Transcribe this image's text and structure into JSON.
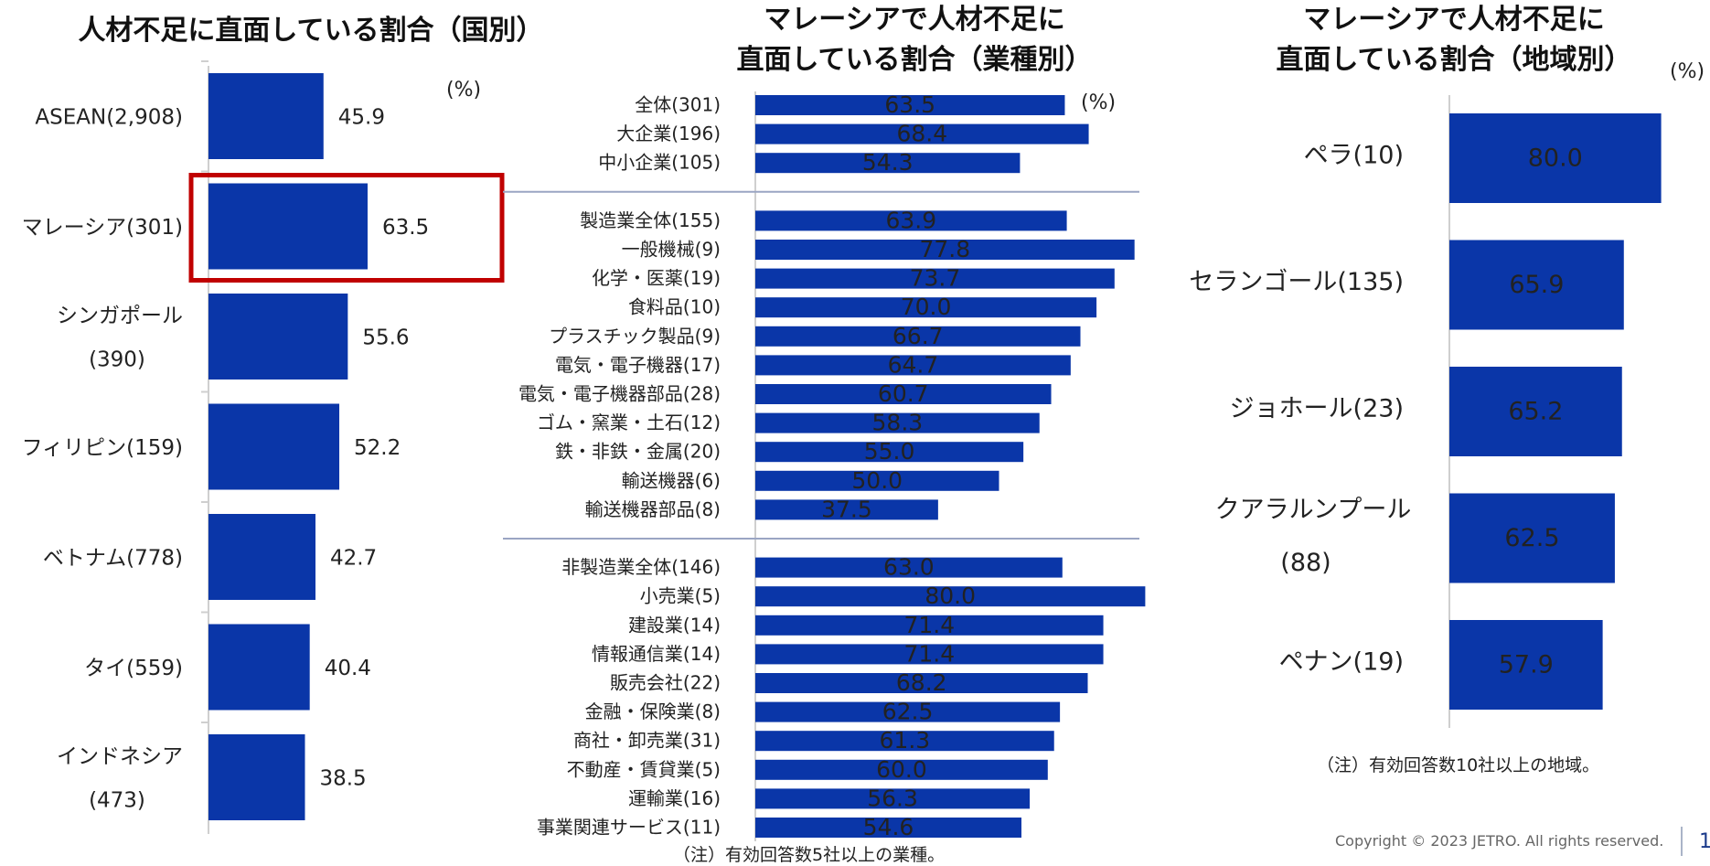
{
  "titles": {
    "country": "人材不足に直面している割合（国別）",
    "industry_line1": "マレーシアで人材不足に",
    "industry_line2": "直面している割合（業種別）",
    "region_line1": "マレーシアで人材不足に",
    "region_line2": "直面している割合（地域別）"
  },
  "units": {
    "percent": "(%)"
  },
  "notes": {
    "industry": "（注）有効回答数5社以上の業種。",
    "region": "（注）有効回答数10社以上の地域。"
  },
  "footer": {
    "copyright": "Copyright © 2023 JETRO. All rights reserved.",
    "page": "1"
  },
  "colors": {
    "bar": "#0a36a8",
    "highlight_box": "#c00000",
    "separator": "#9aa5c3",
    "axis": "#cfcfcf"
  },
  "chart_data": [
    {
      "type": "bar",
      "orientation": "horizontal",
      "title": "人材不足に直面している割合（国別）",
      "unit": "(%)",
      "categories": [
        [
          "ASEAN(2,908)"
        ],
        [
          "マレーシア(301)"
        ],
        [
          "シンガポール",
          "(390)"
        ],
        [
          "フィリピン(159)"
        ],
        [
          "ベトナム(778)"
        ],
        [
          "タイ(559)"
        ],
        [
          "インドネシア",
          "(473)"
        ]
      ],
      "values": [
        45.9,
        63.5,
        55.6,
        52.2,
        42.7,
        40.4,
        38.5
      ],
      "highlight": "マレーシア(301)",
      "xlim": [
        0,
        100
      ]
    },
    {
      "type": "bar",
      "orientation": "horizontal",
      "title": "マレーシアで人材不足に直面している割合（業種別）",
      "unit": "(%)",
      "groups": [
        {
          "categories": [
            "全体(301)",
            "大企業(196)",
            "中小企業(105)"
          ],
          "values": [
            63.5,
            68.4,
            54.3
          ]
        },
        {
          "categories": [
            "製造業全体(155)",
            "一般機械(9)",
            "化学・医薬(19)",
            "食料品(10)",
            "プラスチック製品(9)",
            "電気・電子機器(17)",
            "電気・電子機器部品(28)",
            "ゴム・窯業・土石(12)",
            "鉄・非鉄・金属(20)",
            "輸送機器(6)",
            "輸送機器部品(8)"
          ],
          "values": [
            63.9,
            77.8,
            73.7,
            70.0,
            66.7,
            64.7,
            60.7,
            58.3,
            55.0,
            50.0,
            37.5
          ]
        },
        {
          "categories": [
            "非製造業全体(146)",
            "小売業(5)",
            "建設業(14)",
            "情報通信業(14)",
            "販売会社(22)",
            "金融・保険業(8)",
            "商社・卸売業(31)",
            "不動産・賃貸業(5)",
            "運輸業(16)",
            "事業関連サービス(11)"
          ],
          "values": [
            63.0,
            80.0,
            71.4,
            71.4,
            68.2,
            62.5,
            61.3,
            60.0,
            56.3,
            54.6
          ]
        }
      ],
      "xlim": [
        0,
        80
      ]
    },
    {
      "type": "bar",
      "orientation": "horizontal",
      "title": "マレーシアで人材不足に直面している割合（地域別）",
      "unit": "(%)",
      "categories": [
        [
          "ペラ(10)"
        ],
        [
          "セランゴール(135)"
        ],
        [
          "ジョホール(23)"
        ],
        [
          "クアラルンプール",
          "(88)"
        ],
        [
          "ペナン(19)"
        ]
      ],
      "values": [
        80.0,
        65.9,
        65.2,
        62.5,
        57.9
      ],
      "xlim": [
        0,
        80
      ]
    }
  ]
}
